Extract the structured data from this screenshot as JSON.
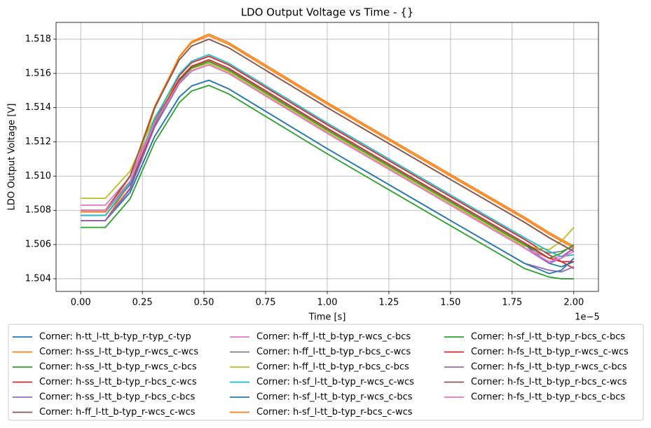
{
  "chart_data": {
    "type": "line",
    "title": "LDO Output Voltage vs Time - {}",
    "x_label": "Time [s]",
    "y_label": "LDO Output Voltage [V]",
    "x_offset_label": "1e−5",
    "x": [
      0,
      0.1,
      0.2,
      0.3,
      0.4,
      0.45,
      0.52,
      0.6,
      1.0,
      1.5,
      1.8,
      1.9,
      1.95,
      2.0
    ],
    "xlim": [
      -0.1,
      2.1
    ],
    "xticks": [
      {
        "value": 0,
        "label": "0.00"
      },
      {
        "value": 0.25,
        "label": "0.25"
      },
      {
        "value": 0.5,
        "label": "0.50"
      },
      {
        "value": 0.75,
        "label": "0.75"
      },
      {
        "value": 1,
        "label": "1.00"
      },
      {
        "value": 1.25,
        "label": "1.25"
      },
      {
        "value": 1.5,
        "label": "1.50"
      },
      {
        "value": 1.75,
        "label": "1.75"
      },
      {
        "value": 2,
        "label": "2.00"
      }
    ],
    "ylim": [
      1.50326,
      1.51898
    ],
    "yticks": [
      1.504,
      1.506,
      1.508,
      {
        "value": 1.51,
        "label": "1.510"
      },
      1.512,
      1.514,
      1.516,
      1.518
    ],
    "grid": true,
    "legend": "bottom",
    "series": [
      {
        "name": "Corner: h-tt_l-tt_b-typ_r-typ_c-typ",
        "color": "#1f77b4",
        "values": [
          1.5077,
          1.5077,
          1.5095,
          1.5131,
          1.5156,
          1.5163,
          1.5167,
          1.5162,
          1.5127,
          1.5085,
          1.506,
          1.5049,
          1.5047,
          1.505
        ]
      },
      {
        "name": "Corner: h-ss_l-tt_b-typ_r-wcs_c-wcs",
        "color": "#ff7f0e",
        "values": [
          1.5074,
          1.5074,
          1.50958,
          1.51394,
          1.51699,
          1.51786,
          1.5183,
          1.5178,
          1.5143,
          1.5101,
          1.5076,
          1.5067,
          1.5063,
          1.5059
        ]
      },
      {
        "name": "Corner: h-ss_l-tt_b-typ_r-wcs_c-bcs",
        "color": "#2ca02c",
        "values": [
          1.507,
          1.507,
          1.50866,
          1.51198,
          1.5143,
          1.51497,
          1.5153,
          1.5148,
          1.5113,
          1.5071,
          1.5046,
          1.5041,
          1.504,
          1.504
        ]
      },
      {
        "name": "Corner: h-ss_l-tt_b-typ_r-bcs_c-wcs",
        "color": "#d62728",
        "values": [
          1.5077,
          1.5077,
          1.50956,
          1.51328,
          1.51588,
          1.51663,
          1.517,
          1.5165,
          1.513,
          1.5088,
          1.5063,
          1.5054,
          1.505,
          1.5046
        ]
      },
      {
        "name": "Corner: h-ss_l-tt_b-typ_r-bcs_c-bcs",
        "color": "#9467bd",
        "values": [
          1.5074,
          1.5074,
          1.50904,
          1.51232,
          1.51462,
          1.51527,
          1.5156,
          1.5151,
          1.5116,
          1.5074,
          1.5049,
          1.5045,
          1.5044,
          1.5047
        ]
      },
      {
        "name": "Corner: h-ff_l-tt_b-typ_r-wcs_c-wcs",
        "color": "#8c564b",
        "values": [
          1.508,
          1.508,
          1.51,
          1.514,
          1.5168,
          1.5176,
          1.518,
          1.5175,
          1.514,
          1.5098,
          1.5073,
          1.5064,
          1.506,
          1.5056
        ]
      },
      {
        "name": "Corner: h-ff_l-tt_b-typ_r-wcs_c-bcs",
        "color": "#e377c2",
        "values": [
          1.5083,
          1.5083,
          1.50994,
          1.51322,
          1.51552,
          1.51617,
          1.5165,
          1.516,
          1.5125,
          1.5083,
          1.5058,
          1.5052,
          1.5053,
          1.5058
        ]
      },
      {
        "name": "Corner: h-ff_l-tt_b-typ_r-bcs_c-wcs",
        "color": "#7f7f7f",
        "values": [
          1.5079,
          1.5079,
          1.50966,
          1.51318,
          1.51564,
          1.51635,
          1.5167,
          1.5162,
          1.5127,
          1.5085,
          1.506,
          1.5055,
          1.5056,
          1.5059
        ]
      },
      {
        "name": "Corner: h-ff_l-tt_b-typ_r-bcs_c-bcs",
        "color": "#bcbd22",
        "values": [
          1.5087,
          1.5087,
          1.51028,
          1.51344,
          1.51565,
          1.51628,
          1.5166,
          1.5161,
          1.5126,
          1.5084,
          1.5059,
          1.5057,
          1.5062,
          1.507
        ]
      },
      {
        "name": "Corner: h-sf_l-tt_b-typ_r-wcs_c-wcs",
        "color": "#17becf",
        "values": [
          1.5077,
          1.5077,
          1.50958,
          1.51334,
          1.51597,
          1.51672,
          1.5171,
          1.5166,
          1.5131,
          1.5089,
          1.5064,
          1.5056,
          1.5053,
          1.5054
        ]
      },
      {
        "name": "Corner: h-sf_l-tt_b-typ_r-wcs_c-bcs",
        "color": "#1f77b4",
        "values": [
          1.5074,
          1.5074,
          1.50904,
          1.51232,
          1.51462,
          1.51527,
          1.5156,
          1.5151,
          1.5116,
          1.5074,
          1.5049,
          1.5043,
          1.5045,
          1.5052
        ]
      },
      {
        "name": "Corner: h-sf_l-tt_b-typ_r-bcs_c-wcs",
        "color": "#ff7f0e",
        "values": [
          1.5079,
          1.5079,
          1.50996,
          1.51408,
          1.51696,
          1.51779,
          1.5182,
          1.5177,
          1.5142,
          1.51,
          1.5075,
          1.5066,
          1.5062,
          1.5058
        ]
      },
      {
        "name": "Corner: h-sf_l-tt_b-typ_r-bcs_c-bcs",
        "color": "#2ca02c",
        "values": [
          1.5074,
          1.5074,
          1.50926,
          1.51298,
          1.51558,
          1.51633,
          1.5167,
          1.5162,
          1.5127,
          1.5085,
          1.506,
          1.5052,
          1.5055,
          1.506
        ]
      },
      {
        "name": "Corner: h-fs_l-tt_b-typ_r-wcs_c-wcs",
        "color": "#d62728",
        "values": [
          1.5074,
          1.5074,
          1.50928,
          1.51304,
          1.51567,
          1.51642,
          1.5168,
          1.5163,
          1.5128,
          1.5086,
          1.5061,
          1.5052,
          1.505,
          1.505
        ]
      },
      {
        "name": "Corner: h-fs_l-tt_b-typ_r-wcs_c-bcs",
        "color": "#9467bd",
        "values": [
          1.5074,
          1.5074,
          1.50922,
          1.51286,
          1.51541,
          1.51614,
          1.5165,
          1.516,
          1.5125,
          1.5083,
          1.5058,
          1.5049,
          1.5052,
          1.5058
        ]
      },
      {
        "name": "Corner: h-fs_l-tt_b-typ_r-bcs_c-wcs",
        "color": "#8c564b",
        "values": [
          1.508,
          1.508,
          1.51,
          1.514,
          1.5168,
          1.5176,
          1.518,
          1.5175,
          1.514,
          1.5098,
          1.5073,
          1.5064,
          1.506,
          1.5056
        ]
      },
      {
        "name": "Corner: h-fs_l-tt_b-typ_r-bcs_c-bcs",
        "color": "#e377c2",
        "values": [
          1.508,
          1.508,
          1.5097,
          1.5131,
          1.51548,
          1.51616,
          1.5165,
          1.516,
          1.5125,
          1.5083,
          1.5058,
          1.505,
          1.5052,
          1.5056
        ]
      }
    ]
  }
}
